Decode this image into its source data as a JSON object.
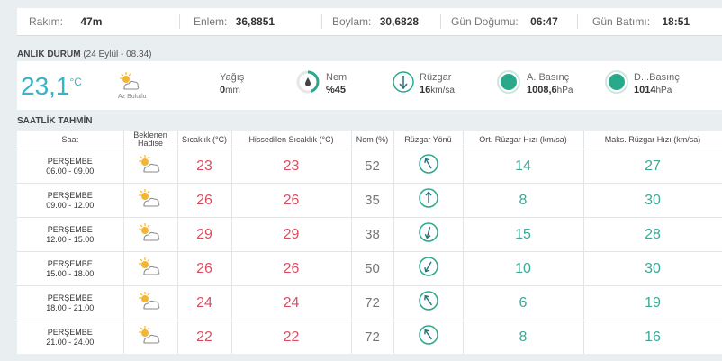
{
  "location_bar": {
    "altitude": {
      "label": "Rakım:",
      "value": "47m"
    },
    "latitude": {
      "label": "Enlem:",
      "value": "36,8851"
    },
    "longitude": {
      "label": "Boylam:",
      "value": "30,6828"
    },
    "sunrise": {
      "label": "Gün Doğumu:",
      "value": "06:47"
    },
    "sunset": {
      "label": "Gün Batımı:",
      "value": "18:51"
    }
  },
  "current": {
    "title": "ANLIK DURUM",
    "subtitle": "(24 Eylül - 08.34)",
    "temperature": "23,1",
    "temperature_unit": "°C",
    "condition": "Az Bulutlu",
    "condition_icon": "partly-sunny-icon",
    "precip": {
      "label": "Yağış",
      "value": "0",
      "unit": "mm"
    },
    "humidity": {
      "label": "Nem",
      "value": "%45",
      "fraction": 0.45
    },
    "wind": {
      "label": "Rüzgar",
      "value": "16",
      "unit": "km/sa"
    },
    "pressure": {
      "label": "A. Basınç",
      "value": "1008,6",
      "unit": "hPa"
    },
    "sea_pressure": {
      "label": "D.İ.Basınç",
      "value": "1014",
      "unit": "hPa"
    },
    "colors": {
      "accent": "#38b3c8",
      "ring": "#2aa88a"
    }
  },
  "hourly": {
    "title": "SAATLİK TAHMİN",
    "headers": {
      "time": "Saat",
      "event_line1": "Beklenen",
      "event_line2": "Hadise",
      "temp": "Sıcaklık (°C)",
      "feels": "Hissedilen Sıcaklık (°C)",
      "humidity": "Nem (%)",
      "wind_dir": "Rüzgar Yönü",
      "wind_avg": "Ort. Rüzgar Hızı (km/sa)",
      "wind_max": "Maks. Rüzgar Hızı (km/sa)"
    },
    "rows": [
      {
        "day": "PERŞEMBE",
        "range": "06.00 - 09.00",
        "temp": "23",
        "feels": "23",
        "humidity": "52",
        "wind_dir_deg": 150,
        "wind_avg": "14",
        "wind_max": "27"
      },
      {
        "day": "PERŞEMBE",
        "range": "09.00 - 12.00",
        "temp": "26",
        "feels": "26",
        "humidity": "35",
        "wind_dir_deg": 180,
        "wind_avg": "8",
        "wind_max": "30"
      },
      {
        "day": "PERŞEMBE",
        "range": "12.00 - 15.00",
        "temp": "29",
        "feels": "29",
        "humidity": "38",
        "wind_dir_deg": 15,
        "wind_avg": "15",
        "wind_max": "28"
      },
      {
        "day": "PERŞEMBE",
        "range": "15.00 - 18.00",
        "temp": "26",
        "feels": "26",
        "humidity": "50",
        "wind_dir_deg": 30,
        "wind_avg": "10",
        "wind_max": "30"
      },
      {
        "day": "PERŞEMBE",
        "range": "18.00 - 21.00",
        "temp": "24",
        "feels": "24",
        "humidity": "72",
        "wind_dir_deg": 145,
        "wind_avg": "6",
        "wind_max": "19"
      },
      {
        "day": "PERŞEMBE",
        "range": "21.00 - 24.00",
        "temp": "22",
        "feels": "22",
        "humidity": "72",
        "wind_dir_deg": 145,
        "wind_avg": "8",
        "wind_max": "16"
      }
    ]
  }
}
